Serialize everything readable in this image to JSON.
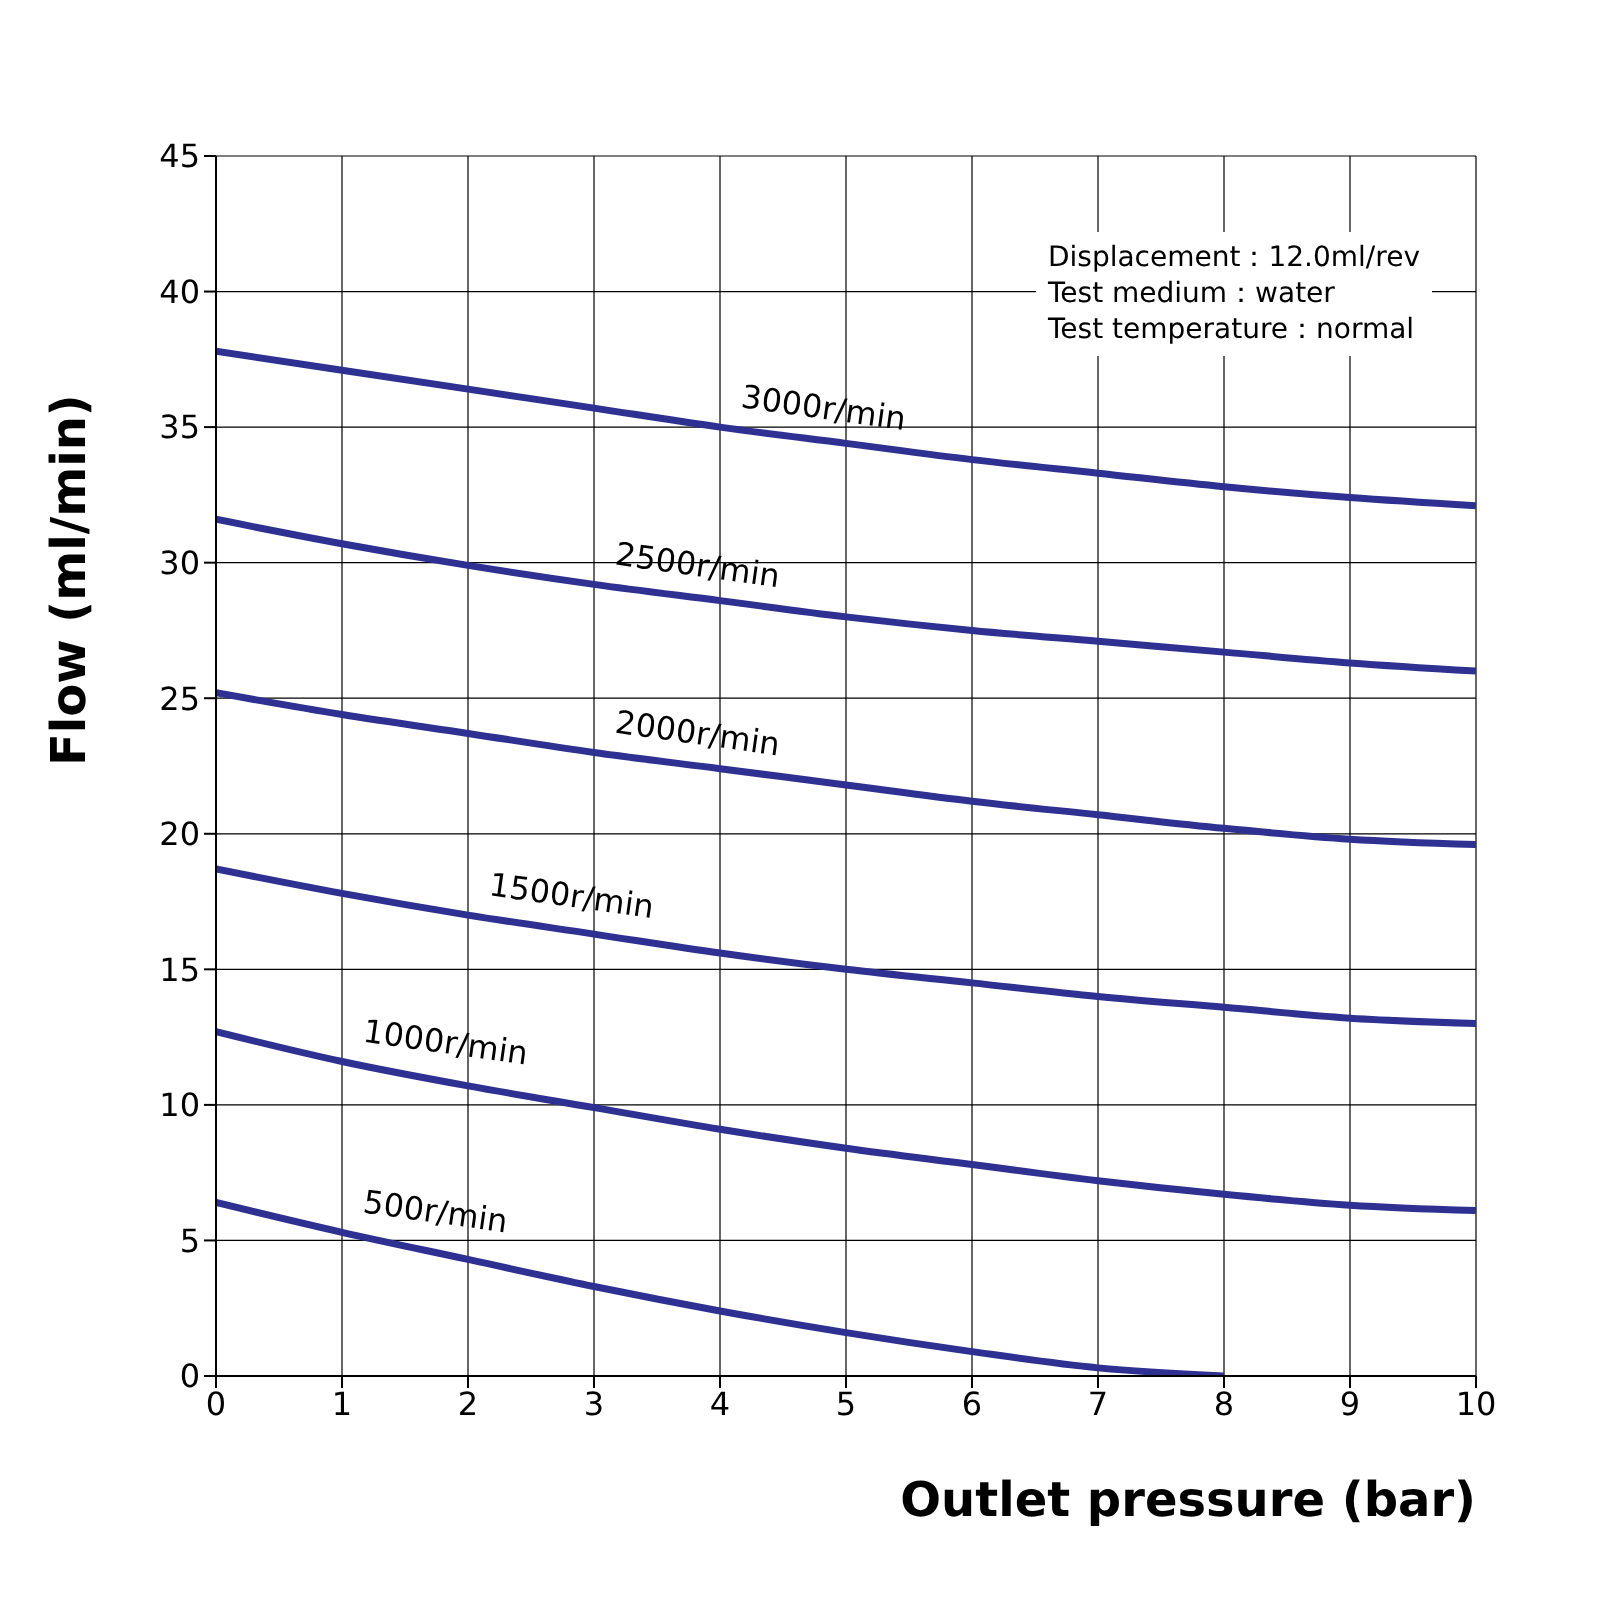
{
  "chart_data": {
    "type": "line",
    "xlabel": "Outlet pressure (bar)",
    "ylabel": "Flow (ml/min)",
    "annotations": [
      "Displacement：12.0ml/rev",
      "Test medium：water",
      "Test temperature：normal"
    ],
    "x": [
      0,
      1,
      2,
      3,
      4,
      5,
      6,
      7,
      8,
      9,
      10
    ],
    "series": [
      {
        "name": "500r/min",
        "color": "#2e3192",
        "values": [
          6.4,
          5.3,
          4.3,
          3.3,
          2.4,
          1.6,
          0.9,
          0.3,
          0.0,
          null,
          null
        ]
      },
      {
        "name": "1000r/min",
        "color": "#2e3192",
        "values": [
          12.7,
          11.6,
          10.7,
          9.9,
          9.1,
          8.4,
          7.8,
          7.2,
          6.7,
          6.3,
          6.1
        ]
      },
      {
        "name": "1500r/min",
        "color": "#2e3192",
        "values": [
          18.7,
          17.8,
          17.0,
          16.3,
          15.6,
          15.0,
          14.5,
          14.0,
          13.6,
          13.2,
          13.0
        ]
      },
      {
        "name": "2000r/min",
        "color": "#2e3192",
        "values": [
          25.2,
          24.4,
          23.7,
          23.0,
          22.4,
          21.8,
          21.2,
          20.7,
          20.2,
          19.8,
          19.6
        ]
      },
      {
        "name": "2500r/min",
        "color": "#2e3192",
        "values": [
          31.6,
          30.7,
          29.9,
          29.2,
          28.6,
          28.0,
          27.5,
          27.1,
          26.7,
          26.3,
          26.0
        ]
      },
      {
        "name": "3000r/min",
        "color": "#2e3192",
        "values": [
          37.8,
          37.1,
          36.4,
          35.7,
          35.0,
          34.4,
          33.8,
          33.3,
          32.8,
          32.4,
          32.1
        ]
      }
    ],
    "xlim": [
      0,
      10
    ],
    "xticks": [
      0,
      1,
      2,
      3,
      4,
      5,
      6,
      7,
      8,
      9,
      10
    ],
    "ylim": [
      0,
      45
    ],
    "yticks": [
      0,
      5,
      10,
      15,
      20,
      25,
      30,
      35,
      40,
      45
    ],
    "grid": true,
    "legend": false,
    "marker": "none",
    "line_style": "solid"
  }
}
